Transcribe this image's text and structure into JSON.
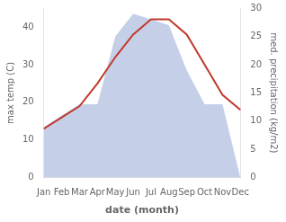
{
  "chart_data": {
    "type": "line",
    "xlabel": "date (month)",
    "ylabel": "max temp (C)",
    "y2label": "med. precipitation (kg/m2)",
    "categories": [
      "Jan",
      "Feb",
      "Mar",
      "Apr",
      "May",
      "Jun",
      "Jul",
      "Aug",
      "Sep",
      "Oct",
      "Nov",
      "Dec"
    ],
    "series": [
      {
        "type": "area",
        "color": "#c5d0e8",
        "axis": "y2",
        "values": [
          9,
          11,
          13,
          13,
          25,
          29,
          28,
          27,
          19,
          13,
          13,
          0
        ]
      },
      {
        "type": "line",
        "color": "#c0392b",
        "values": [
          13,
          16,
          19,
          25,
          32,
          38,
          42,
          42,
          38,
          30,
          22,
          18
        ]
      }
    ],
    "ylim": [
      0,
      45
    ],
    "yticks": [
      0,
      10,
      20,
      30,
      40
    ],
    "y2lim": [
      0,
      30
    ],
    "y2ticks": [
      0,
      5,
      10,
      15,
      20,
      25,
      30
    ],
    "grid": false
  }
}
